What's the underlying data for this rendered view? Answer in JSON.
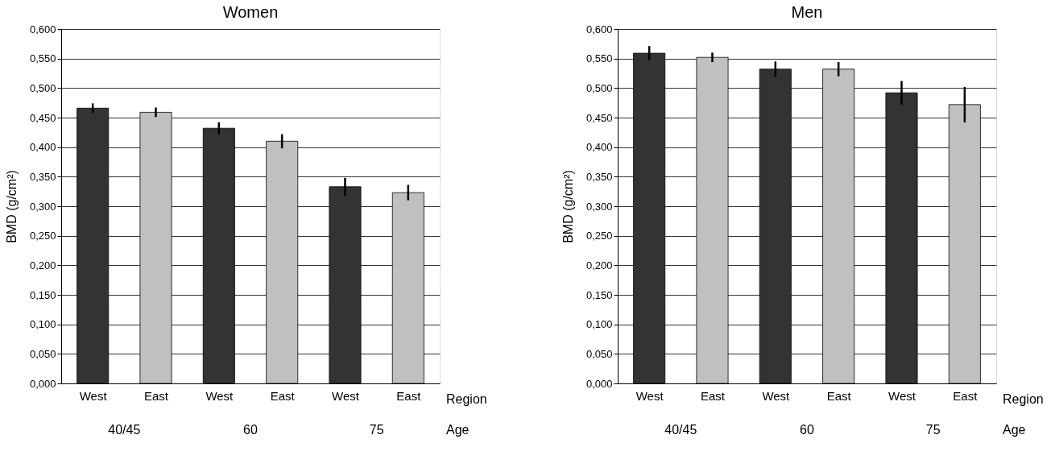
{
  "chart_data": [
    {
      "type": "bar",
      "title": "Women",
      "ylabel": "BMD (g/cm²)",
      "categories": [
        "West",
        "East",
        "West",
        "East",
        "West",
        "East"
      ],
      "values": [
        0.466,
        0.459,
        0.432,
        0.41,
        0.333,
        0.323
      ],
      "colors": [
        "#333333",
        "#c0c0c0",
        "#333333",
        "#c0c0c0",
        "#333333",
        "#c0c0c0"
      ],
      "errors": [
        0.008,
        0.008,
        0.01,
        0.012,
        0.015,
        0.013
      ],
      "ylim": [
        0,
        0.6
      ],
      "yticks": [
        {
          "value": 0,
          "label": "0,000"
        },
        {
          "value": 0.05,
          "label": "0,050"
        },
        {
          "value": 0.1,
          "label": "0,100"
        },
        {
          "value": 0.15,
          "label": "0,150"
        },
        {
          "value": 0.2,
          "label": "0,200"
        },
        {
          "value": 0.25,
          "label": "0,250"
        },
        {
          "value": 0.3,
          "label": "0,300"
        },
        {
          "value": 0.35,
          "label": "0,350"
        },
        {
          "value": 0.4,
          "label": "0,400"
        },
        {
          "value": 0.45,
          "label": "0,450"
        },
        {
          "value": 0.5,
          "label": "0,500"
        },
        {
          "value": 0.55,
          "label": "0,550"
        },
        {
          "value": 0.6,
          "label": "0,600"
        }
      ],
      "grid": "y",
      "annotations": [
        "Region",
        "Age",
        "40/45",
        "60",
        "75"
      ]
    },
    {
      "type": "bar",
      "title": "Men",
      "ylabel": "BMD (g/cm²)",
      "categories": [
        "West",
        "East",
        "West",
        "East",
        "West",
        "East"
      ],
      "values": [
        0.559,
        0.552,
        0.532,
        0.532,
        0.492,
        0.472
      ],
      "colors": [
        "#333333",
        "#c0c0c0",
        "#333333",
        "#c0c0c0",
        "#333333",
        "#c0c0c0"
      ],
      "errors": [
        0.012,
        0.008,
        0.013,
        0.012,
        0.02,
        0.03
      ],
      "ylim": [
        0,
        0.6
      ],
      "yticks": [
        {
          "value": 0,
          "label": "0,000"
        },
        {
          "value": 0.05,
          "label": "0,050"
        },
        {
          "value": 0.1,
          "label": "0,100"
        },
        {
          "value": 0.15,
          "label": "0,150"
        },
        {
          "value": 0.2,
          "label": "0,200"
        },
        {
          "value": 0.25,
          "label": "0,250"
        },
        {
          "value": 0.3,
          "label": "0,300"
        },
        {
          "value": 0.35,
          "label": "0,350"
        },
        {
          "value": 0.4,
          "label": "0,400"
        },
        {
          "value": 0.45,
          "label": "0,450"
        },
        {
          "value": 0.5,
          "label": "0,500"
        },
        {
          "value": 0.55,
          "label": "0,550"
        },
        {
          "value": 0.6,
          "label": "0,600"
        }
      ],
      "grid": "y",
      "annotations": [
        "Region",
        "Age",
        "40/45",
        "60",
        "75"
      ]
    }
  ]
}
